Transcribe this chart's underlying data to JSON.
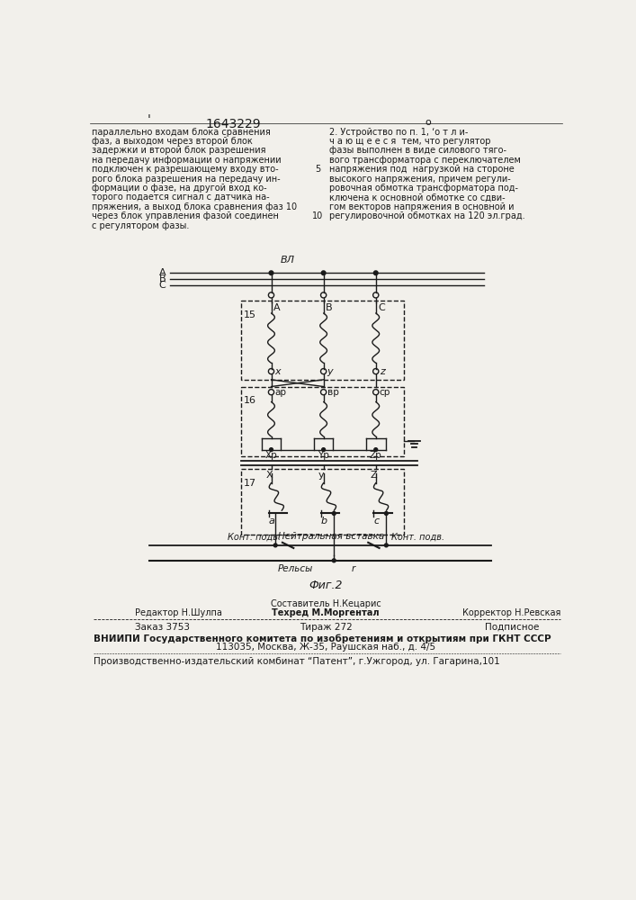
{
  "page_width": 7.07,
  "page_height": 10.0,
  "bg_color": "#f2f0eb",
  "title_text": "1643229",
  "header_left": [
    "параллельно входам блока сравнения  ",
    "фаз, а выходом через второй блок",
    "задержки и второй блок разрешения",
    "на передачу информации о напряжении",
    "подключен к разрешающему входу вто-",
    "рого блока разрешения на передачу ин-",
    "формации о фазе, на другой вход ко-",
    "торого подается сигнал с датчика на-",
    "пряжения, а выход блока сравнения фаз 10",
    "через блок управления фазой соединен",
    "с регулятором фазы."
  ],
  "header_right": [
    "2. Устройство по п. 1, ‘о т л и-",
    "ч а ю щ е е с я  тем, что регулятор",
    "фазы выполнен в виде силового тяго-",
    "вого трансформатора с переключателем",
    "напряжения под  нагрузкой на стороне",
    "высокого напряжения, причем регули-",
    "ровочная обмотка трансформатора под-",
    "ключена к основной обмотке со сдви-",
    "гом векторов напряжения в основной и",
    "регулировочной обмотках на 120 эл.град."
  ],
  "fig_caption": "Фиг.2",
  "composer_label": "Составитель Н.Кецарис",
  "editor_label": "Редактор Н.Шулпа",
  "techred_label": "Техред М.Моргентал",
  "corrector_label": "Корректор Н.Ревская",
  "order_label": "Заказ 3753",
  "tirazh_label": "Тираж 272",
  "podpisnoe_label": "Подписное",
  "vniiipi_label": "ВНИИПИ Государственного комитета по изобретениям и открытиям при ГКНТ СССР  ",
  "address_label": "113035, Москва, Ж-35, Раушская наб., д. 4/5",
  "patent_label": "Производственно-издательский комбинат “Патент”, г.Ужгород, ул. Гагарина,101"
}
